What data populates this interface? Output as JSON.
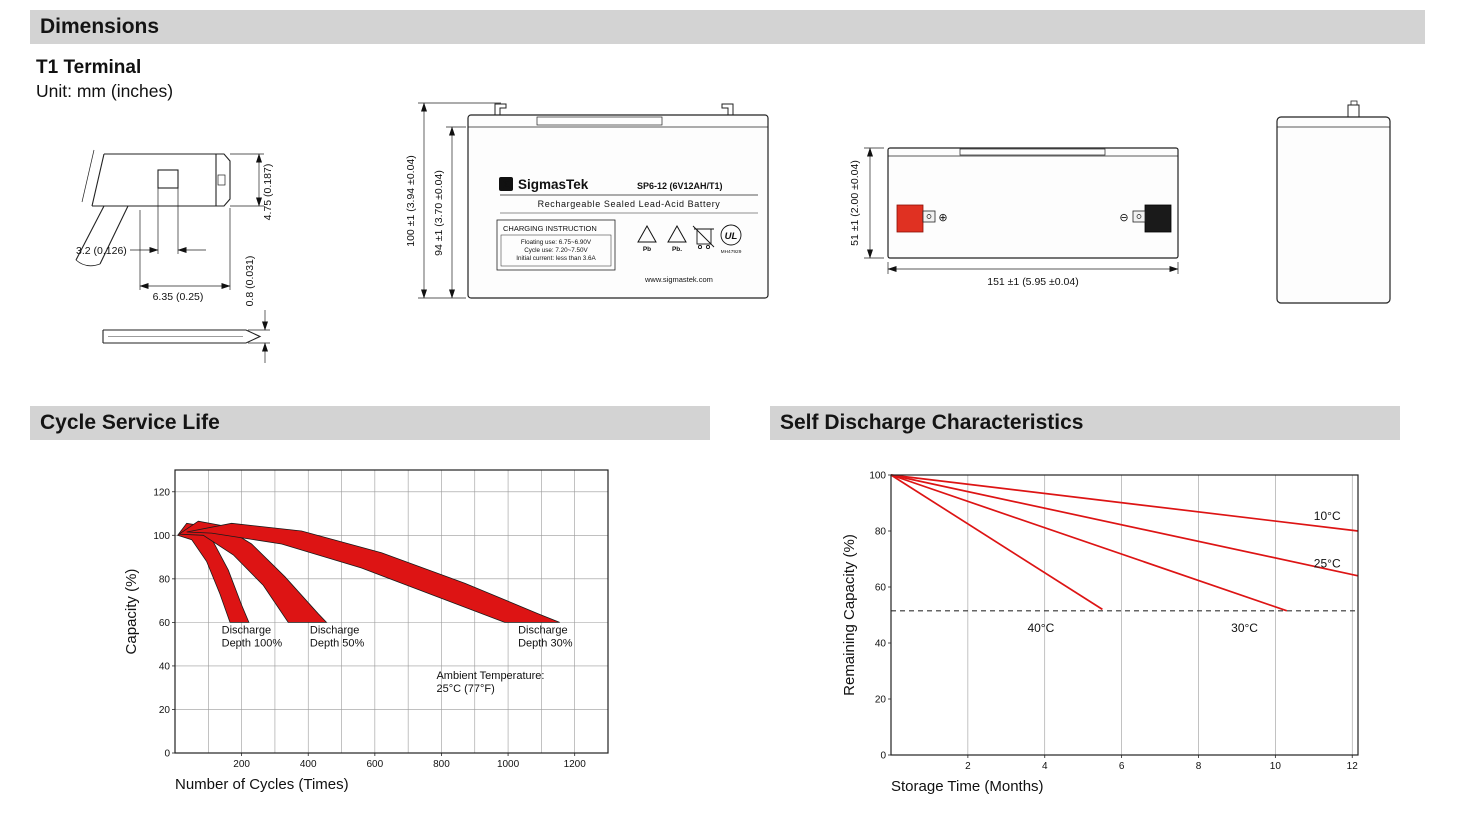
{
  "header": {
    "dimensions_title": "Dimensions",
    "terminal_title": "T1 Terminal",
    "unit_label": "Unit: mm (inches)"
  },
  "sections": {
    "cycle_title": "Cycle Service Life",
    "self_discharge_title": "Self Discharge Characteristics"
  },
  "drawings": {
    "terminal_detail": {
      "tab_height": "4.75 (0.187)",
      "slot_width": "3.2 (0.126)",
      "tab_width": "6.35 (0.25)",
      "blade_thickness": "0.8 (0.031)"
    },
    "front_view": {
      "overall_height": "100 ±1 (3.94 ±0.04)",
      "case_height": "94 ±1 (3.70 ±0.04)",
      "sigma": "Σ",
      "brand": "SigmasTek",
      "model": "SP6-12 (6V12AH/T1)",
      "subtitle": "Rechargeable Sealed Lead-Acid Battery",
      "charging_title": "CHARGING INSTRUCTION",
      "charging_lines": [
        "Floating use: 6.75~6.90V",
        "Cycle use: 7.20~7.50V",
        "Initial current: less than 3.6A"
      ],
      "pb_label_1": "Pb",
      "pb_label_2": "Pb.",
      "ul_label": "UL",
      "ul_code": "MH47929",
      "website": "www.sigmastek.com"
    },
    "side_view": {
      "height": "51 ±1 (2.00 ±0.04)",
      "length": "151 ±1 (5.95 ±0.04)",
      "plus_symbol": "⊕",
      "minus_symbol": "⊖"
    }
  },
  "chart_data": [
    {
      "id": "cycle_service_life",
      "type": "area",
      "title": "Cycle Service Life",
      "xlabel": "Number of Cycles (Times)",
      "ylabel": "Capacity (%)",
      "xlim": [
        0,
        1300
      ],
      "ylim": [
        0,
        130
      ],
      "xticks": [
        200,
        400,
        600,
        800,
        1000,
        1200
      ],
      "yticks": [
        0,
        20,
        40,
        60,
        80,
        100,
        120
      ],
      "grid_x": [
        100,
        200,
        300,
        400,
        500,
        600,
        700,
        800,
        900,
        1000,
        1100,
        1200
      ],
      "grid_y": [
        20,
        40,
        60,
        80,
        100,
        120
      ],
      "grid": true,
      "legend_position": "none",
      "band_color": "#dd1414",
      "bands": [
        {
          "name": "Discharge Depth 100%",
          "points": [
            [
              8,
              100
            ],
            [
              35,
              105.5
            ],
            [
              75,
              104.5
            ],
            [
              115,
              97
            ],
            [
              160,
              84
            ],
            [
              200,
              68
            ],
            [
              222,
              60
            ],
            [
              165,
              60
            ],
            [
              135,
              73
            ],
            [
              95,
              88
            ],
            [
              50,
              98
            ],
            [
              8,
              100
            ]
          ]
        },
        {
          "name": "Discharge Depth 50%",
          "points": [
            [
              12,
              100.5
            ],
            [
              70,
              106.5
            ],
            [
              140,
              104.5
            ],
            [
              230,
              96
            ],
            [
              330,
              81
            ],
            [
              430,
              64
            ],
            [
              455,
              60
            ],
            [
              340,
              60
            ],
            [
              265,
              77
            ],
            [
              175,
              91
            ],
            [
              85,
              100
            ],
            [
              12,
              100.5
            ]
          ]
        },
        {
          "name": "Discharge Depth 30%",
          "points": [
            [
              35,
              101.5
            ],
            [
              170,
              105.5
            ],
            [
              380,
              102
            ],
            [
              620,
              92
            ],
            [
              870,
              78
            ],
            [
              1090,
              64
            ],
            [
              1155,
              60
            ],
            [
              990,
              60
            ],
            [
              800,
              71
            ],
            [
              560,
              85
            ],
            [
              320,
              96
            ],
            [
              110,
              101
            ],
            [
              35,
              101.5
            ]
          ]
        }
      ],
      "annotations": [
        {
          "lines": [
            "Discharge",
            "Depth 100%"
          ],
          "x": 140,
          "y": 55,
          "size": 11
        },
        {
          "lines": [
            "Discharge",
            "Depth 50%"
          ],
          "x": 405,
          "y": 55,
          "size": 11
        },
        {
          "lines": [
            "Discharge",
            "Depth 30%"
          ],
          "x": 1030,
          "y": 55,
          "size": 11
        },
        {
          "lines": [
            "Ambient Temperature:",
            "25°C (77°F)"
          ],
          "x": 785,
          "y": 34,
          "size": 11
        }
      ]
    },
    {
      "id": "self_discharge_characteristics",
      "type": "line",
      "title": "Self Discharge Characteristics",
      "xlabel": "Storage Time (Months)",
      "ylabel": "Remaining Capacity (%)",
      "xlim": [
        0,
        12.15
      ],
      "ylim": [
        0,
        100
      ],
      "xticks": [
        2,
        4,
        6,
        8,
        10,
        12
      ],
      "yticks": [
        0,
        20,
        40,
        60,
        80,
        100
      ],
      "grid_x": [
        2,
        4,
        6,
        8,
        10,
        12
      ],
      "grid_y": [],
      "grid": true,
      "legend_position": "inline-labels",
      "dashed_hline": 51.5,
      "lines": [
        {
          "name": "10°C",
          "color": "#dd1414",
          "points": [
            [
              0,
              100
            ],
            [
              12.15,
              80
            ]
          ]
        },
        {
          "name": "25°C",
          "color": "#dd1414",
          "points": [
            [
              0,
              100
            ],
            [
              12.15,
              64
            ]
          ]
        },
        {
          "name": "30°C",
          "color": "#dd1414",
          "points": [
            [
              0,
              100
            ],
            [
              10.3,
              51.5
            ]
          ]
        },
        {
          "name": "40°C",
          "color": "#dd1414",
          "points": [
            [
              0,
              100
            ],
            [
              5.5,
              52
            ]
          ]
        }
      ],
      "annotations": [
        {
          "lines": [
            "10°C"
          ],
          "x": 11.0,
          "y": 84,
          "size": 12
        },
        {
          "lines": [
            "25°C"
          ],
          "x": 11.0,
          "y": 67,
          "size": 12
        },
        {
          "lines": [
            "30°C"
          ],
          "x": 8.85,
          "y": 44,
          "size": 12
        },
        {
          "lines": [
            "40°C"
          ],
          "x": 3.55,
          "y": 44,
          "size": 12
        }
      ]
    }
  ]
}
